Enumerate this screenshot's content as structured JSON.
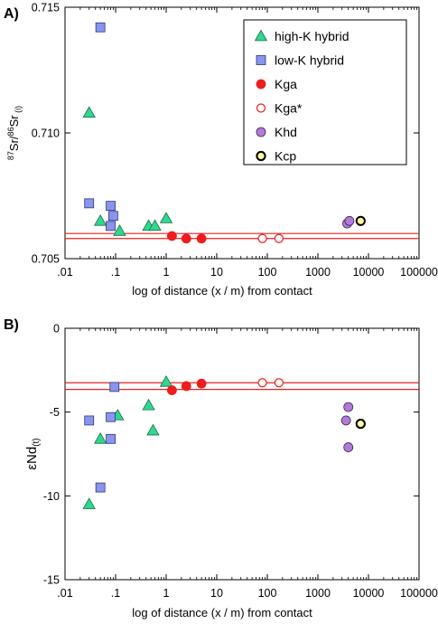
{
  "colors": {
    "high_k": "#2ed98f",
    "low_k": "#8a94e8",
    "kga": "#ee1c1c",
    "khd": "#b27ad8",
    "kcp": "#fff79a",
    "ref_line": "#e8221f"
  },
  "legend": [
    {
      "name": "high-K hybrid",
      "marker": "triangle"
    },
    {
      "name": "low-K hybrid",
      "marker": "square"
    },
    {
      "name": "Kga",
      "marker": "filled-circle"
    },
    {
      "name": "Kga*",
      "marker": "open-circle"
    },
    {
      "name": "Khd",
      "marker": "circle"
    },
    {
      "name": "Kcp",
      "marker": "bold-circle"
    }
  ],
  "x_axis": {
    "title": "log of distance (x / m) from contact",
    "scale": "log",
    "range": [
      0.01,
      100000
    ],
    "ticks": [
      0.01,
      0.1,
      1,
      10,
      100,
      1000,
      10000,
      100000
    ],
    "tick_labels": [
      ".01",
      ".1",
      "1",
      "10",
      "100",
      "1000",
      "10000",
      "100000"
    ]
  },
  "chart_data": [
    {
      "panel": "A)",
      "type": "scatter",
      "ylabel": "87Sr/86Sr (i)",
      "ylabel_parts": {
        "pre": "87",
        "a": "Sr/",
        "mid": "86",
        "b": "Sr",
        "sub": " (i)"
      },
      "ylim": [
        0.705,
        0.715
      ],
      "yticks": [
        0.705,
        0.71,
        0.715
      ],
      "ytick_labels": [
        "0.705",
        "0.710",
        "0.715"
      ],
      "reference_lines": [
        0.7058,
        0.706
      ],
      "series": [
        {
          "name": "high-K hybrid",
          "points": [
            [
              0.03,
              0.7108
            ],
            [
              0.05,
              0.7065
            ],
            [
              0.12,
              0.7061
            ],
            [
              0.45,
              0.7063
            ],
            [
              0.6,
              0.7063
            ],
            [
              1.0,
              0.7066
            ]
          ]
        },
        {
          "name": "low-K hybrid",
          "points": [
            [
              0.03,
              0.7072
            ],
            [
              0.05,
              0.7142
            ],
            [
              0.08,
              0.7071
            ],
            [
              0.08,
              0.7063
            ],
            [
              0.09,
              0.7067
            ]
          ]
        },
        {
          "name": "Kga",
          "points": [
            [
              1.3,
              0.7059
            ],
            [
              2.5,
              0.7058
            ],
            [
              5.0,
              0.7058
            ]
          ]
        },
        {
          "name": "Kga*",
          "points": [
            [
              80,
              0.7058
            ],
            [
              170,
              0.7058
            ]
          ]
        },
        {
          "name": "Khd",
          "points": [
            [
              3800,
              0.7064
            ],
            [
              4200,
              0.7065
            ]
          ]
        },
        {
          "name": "Kcp",
          "points": [
            [
              7000,
              0.7065
            ]
          ]
        }
      ]
    },
    {
      "panel": "B)",
      "type": "scatter",
      "ylabel": "εNd(t)",
      "ylabel_parts": {
        "main": "εNd",
        "sub": "(t)"
      },
      "ylim": [
        -15,
        0
      ],
      "yticks": [
        -15,
        -10,
        -5,
        0
      ],
      "ytick_labels": [
        "-15",
        "-10",
        "-5",
        "0"
      ],
      "reference_lines": [
        -3.25,
        -3.65
      ],
      "series": [
        {
          "name": "high-K hybrid",
          "points": [
            [
              0.03,
              -10.5
            ],
            [
              0.05,
              -6.6
            ],
            [
              0.11,
              -5.2
            ],
            [
              0.45,
              -4.6
            ],
            [
              0.55,
              -6.1
            ],
            [
              1.0,
              -3.2
            ]
          ]
        },
        {
          "name": "low-K hybrid",
          "points": [
            [
              0.03,
              -5.5
            ],
            [
              0.05,
              -9.5
            ],
            [
              0.08,
              -5.3
            ],
            [
              0.08,
              -6.6
            ],
            [
              0.095,
              -3.5
            ]
          ]
        },
        {
          "name": "Kga",
          "points": [
            [
              1.3,
              -3.7
            ],
            [
              2.5,
              -3.45
            ],
            [
              5.0,
              -3.3
            ]
          ]
        },
        {
          "name": "Kga*",
          "points": [
            [
              80,
              -3.25
            ],
            [
              170,
              -3.25
            ]
          ]
        },
        {
          "name": "Khd",
          "points": [
            [
              3600,
              -5.5
            ],
            [
              4000,
              -4.7
            ],
            [
              4000,
              -7.1
            ]
          ]
        },
        {
          "name": "Kcp",
          "points": [
            [
              7000,
              -5.7
            ]
          ]
        }
      ]
    }
  ]
}
